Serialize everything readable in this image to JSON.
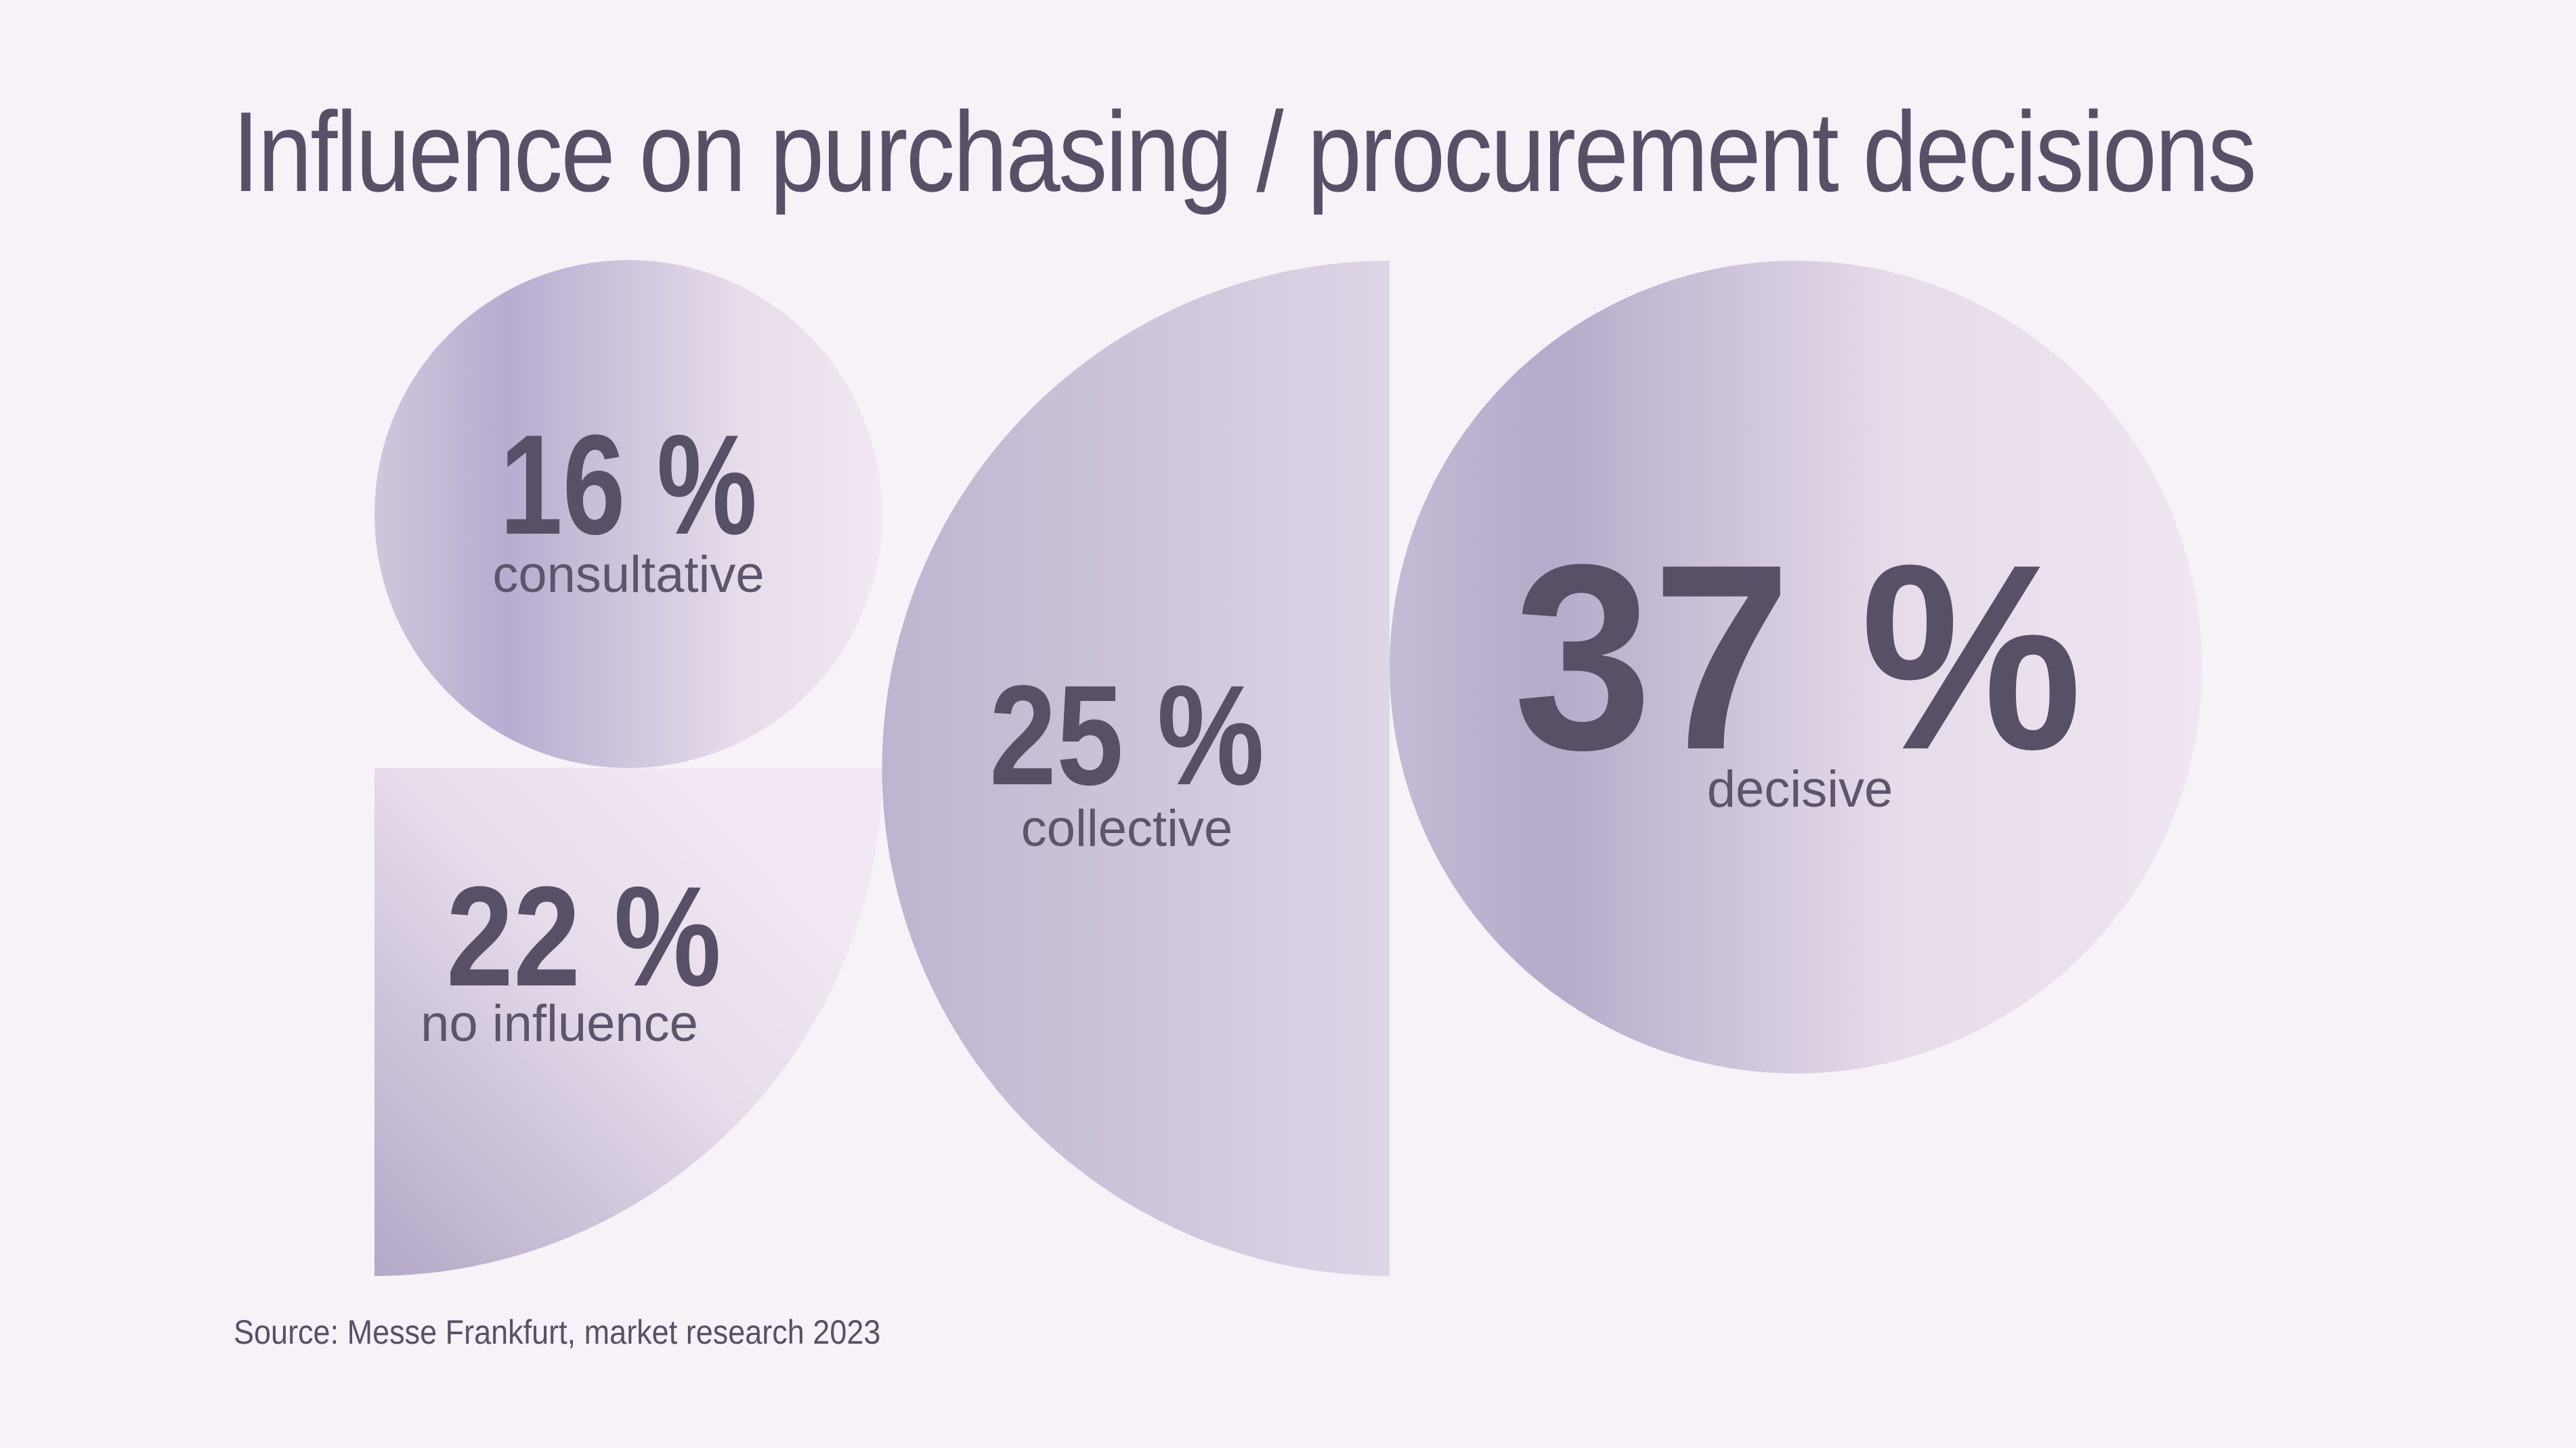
{
  "chart_data": {
    "type": "pie",
    "title": "Influence on purchasing / procurement decisions",
    "unit": "%",
    "segments": [
      {
        "id": "consultative",
        "label": "consultative",
        "value": 16,
        "display": "16 %"
      },
      {
        "id": "no-influence",
        "label": "no influence",
        "value": 22,
        "display": "22 %"
      },
      {
        "id": "collective",
        "label": "collective",
        "value": 25,
        "display": "25 %"
      },
      {
        "id": "decisive",
        "label": "decisive",
        "value": 37,
        "display": "37 %"
      }
    ],
    "source": "Source: Messe Frankfurt, market research 2023"
  },
  "colors": {
    "background": "#f6f2f8",
    "shape_dark": "#b3aac8",
    "shape_light": "#f0e6f2",
    "text": "#575066"
  }
}
